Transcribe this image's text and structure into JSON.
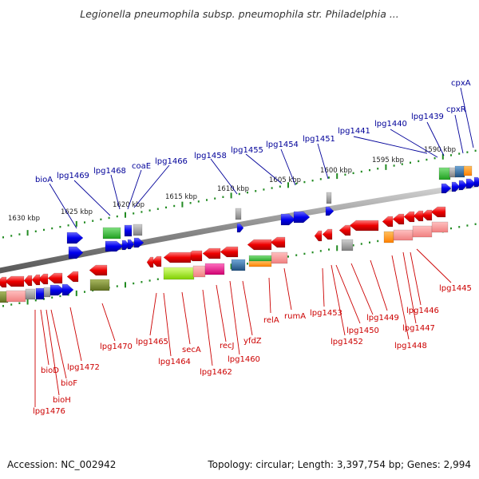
{
  "title": "Legionella pneumophila subsp. pneumophila str. Philadelphia ...",
  "accession": "Accession: NC_002942",
  "topology": "Topology: circular; Length: 3,397,754 bp; Genes: 2,994",
  "colors": {
    "forward_blue": "#0000ee",
    "reverse_red": "#ee0000",
    "forward_label": "#000099",
    "reverse_label": "#cc0000",
    "tick_green": "#228b22",
    "backbone": "#888888"
  },
  "kbp_marks": [
    {
      "label": "1630 kbp"
    },
    {
      "label": "1625 kbp"
    },
    {
      "label": "1620 kbp"
    },
    {
      "label": "1615 kbp"
    },
    {
      "label": "1610 kbp"
    },
    {
      "label": "1605 kbp"
    },
    {
      "label": "1600 kbp"
    },
    {
      "label": "1595 kbp"
    },
    {
      "label": "1590 kbp"
    }
  ],
  "forward_labels": [
    {
      "text": "bioA"
    },
    {
      "text": "lpg1469"
    },
    {
      "text": "lpg1468"
    },
    {
      "text": "coaE"
    },
    {
      "text": "lpg1466"
    },
    {
      "text": "lpg1458"
    },
    {
      "text": "lpg1455"
    },
    {
      "text": "lpg1454"
    },
    {
      "text": "lpg1451"
    },
    {
      "text": "lpg1441"
    },
    {
      "text": "lpg1440"
    },
    {
      "text": "lpg1439"
    },
    {
      "text": "cpxR"
    },
    {
      "text": "cpxA"
    }
  ],
  "reverse_labels": [
    {
      "text": "bioD"
    },
    {
      "text": "bioH"
    },
    {
      "text": "lpg1476"
    },
    {
      "text": "bioF"
    },
    {
      "text": "lpg1472"
    },
    {
      "text": "lpg1470"
    },
    {
      "text": "lpg1465"
    },
    {
      "text": "lpg1464"
    },
    {
      "text": "secA"
    },
    {
      "text": "lpg1462"
    },
    {
      "text": "recJ"
    },
    {
      "text": "lpg1460"
    },
    {
      "text": "yfdZ"
    },
    {
      "text": "relA"
    },
    {
      "text": "rumA"
    },
    {
      "text": "lpg1453"
    },
    {
      "text": "lpg1452"
    },
    {
      "text": "lpg1450"
    },
    {
      "text": "lpg1449"
    },
    {
      "text": "lpg1448"
    },
    {
      "text": "lpg1447"
    },
    {
      "text": "lpg1446"
    },
    {
      "text": "lpg1445"
    }
  ]
}
